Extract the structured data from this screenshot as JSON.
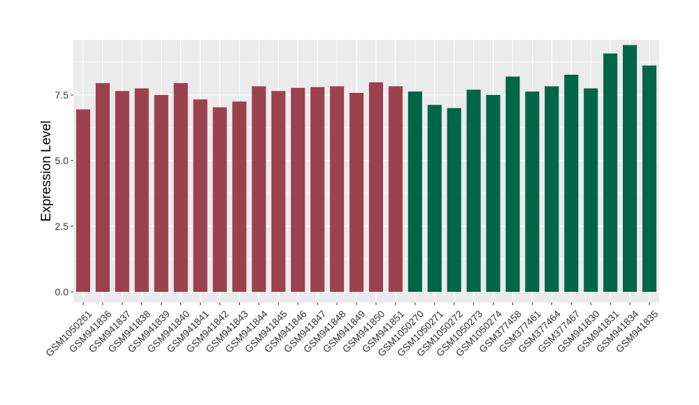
{
  "chart_data": {
    "type": "bar",
    "title": "",
    "xlabel": "",
    "ylabel": "Expression Level",
    "ylim": [
      -0.4,
      9.6
    ],
    "yticks": [
      0.0,
      2.5,
      5.0,
      7.5
    ],
    "ytick_labels": [
      "0.0",
      "2.5",
      "5.0",
      "7.5"
    ],
    "grid": true,
    "legend": "none",
    "categories": [
      "GSM1050261",
      "GSM941836",
      "GSM941837",
      "GSM941838",
      "GSM941839",
      "GSM941840",
      "GSM941841",
      "GSM941842",
      "GSM941843",
      "GSM941844",
      "GSM941845",
      "GSM941846",
      "GSM941847",
      "GSM941848",
      "GSM941849",
      "GSM941850",
      "GSM941851",
      "GSM1050270",
      "GSM1050271",
      "GSM1050272",
      "GSM1050273",
      "GSM1050274",
      "GSM377458",
      "GSM377461",
      "GSM377464",
      "GSM377467",
      "GSM941830",
      "GSM941831",
      "GSM941834",
      "GSM941835"
    ],
    "values": [
      6.95,
      7.95,
      7.65,
      7.75,
      7.5,
      7.95,
      7.33,
      7.03,
      7.25,
      7.83,
      7.65,
      7.77,
      7.8,
      7.83,
      7.58,
      7.98,
      7.83,
      7.63,
      7.12,
      7.0,
      7.7,
      7.5,
      8.2,
      7.63,
      7.83,
      8.27,
      7.75,
      9.08,
      9.4,
      8.62
    ],
    "groups": [
      0,
      0,
      0,
      0,
      0,
      0,
      0,
      0,
      0,
      0,
      0,
      0,
      0,
      0,
      0,
      0,
      0,
      1,
      1,
      1,
      1,
      1,
      1,
      1,
      1,
      1,
      1,
      1,
      1,
      1
    ],
    "group_colors": [
      "#9B4150",
      "#006645"
    ],
    "panel_color": "#EBEBEB",
    "grid_color": "#FFFFFF"
  }
}
